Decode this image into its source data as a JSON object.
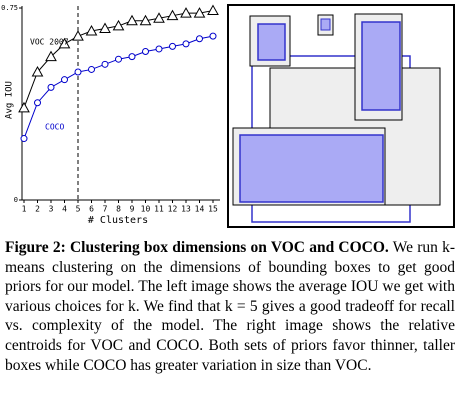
{
  "chart_data": {
    "type": "line",
    "ylabel": "Avg IOU",
    "xlabel": "# Clusters",
    "x": [
      1,
      2,
      3,
      4,
      5,
      6,
      7,
      8,
      9,
      10,
      11,
      12,
      13,
      14,
      15
    ],
    "xlim": [
      1,
      15
    ],
    "xticks": [
      1,
      2,
      3,
      4,
      5,
      6,
      7,
      8,
      9,
      10,
      11,
      12,
      13,
      14,
      15
    ],
    "ylim": [
      0,
      0.75
    ],
    "yticks": [
      0,
      0.75
    ],
    "vline": 5,
    "series": [
      {
        "name": "VOC 2007",
        "color": "#000000",
        "marker": "triangle",
        "values": [
          0.36,
          0.5,
          0.56,
          0.61,
          0.64,
          0.66,
          0.67,
          0.68,
          0.7,
          0.7,
          0.71,
          0.72,
          0.73,
          0.73,
          0.74
        ]
      },
      {
        "name": "COCO",
        "color": "#0000cc",
        "marker": "circle",
        "values": [
          0.24,
          0.38,
          0.44,
          0.47,
          0.5,
          0.51,
          0.53,
          0.55,
          0.56,
          0.58,
          0.59,
          0.6,
          0.61,
          0.63,
          0.64
        ]
      }
    ]
  },
  "caption": {
    "label": "Figure 2:",
    "title": "Clustering box dimensions on VOC and COCO.",
    "text": "We run k-means clustering on the dimensions of bounding boxes to get good priors for our model. The left image shows the average IOU we get with various choices for k. We find that k = 5 gives a good tradeoff for recall vs. complexity of the model. The right image shows the relative centroids for VOC and COCO. Both sets of priors favor thinner, taller boxes while COCO has greater variation in size than VOC."
  }
}
